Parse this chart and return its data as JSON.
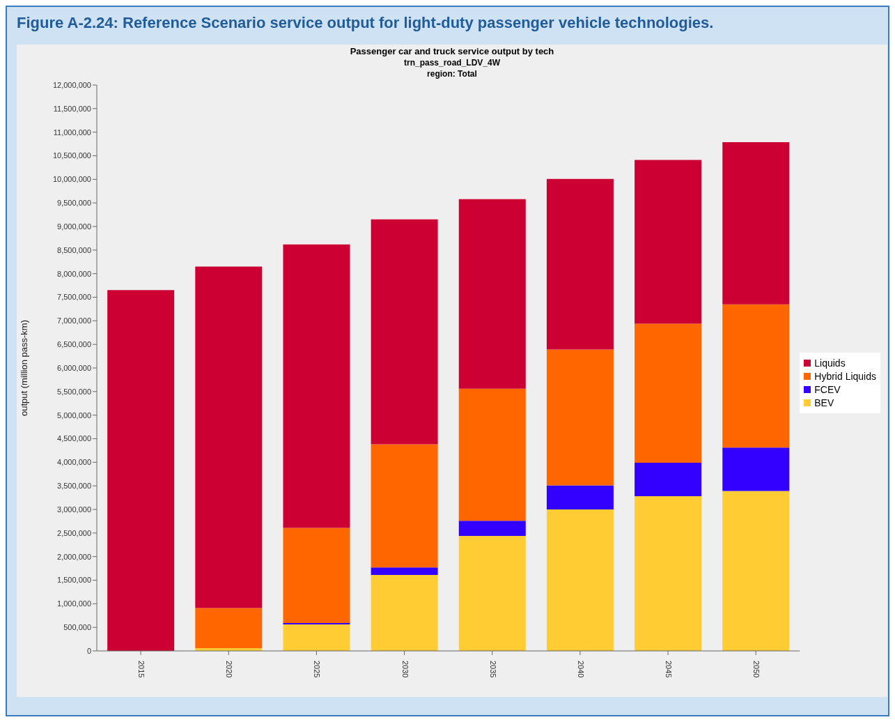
{
  "chart_data": {
    "type": "bar",
    "title": "Figure A-2.24: Reference Scenario service output for light-duty passenger vehicle technologies.",
    "subtitle": "Passenger car and truck service output by tech\ntrn_pass_road_LDV_4W\nregion: Total",
    "ylabel": "output (million pass-km)",
    "categories": [
      "2015",
      "2020",
      "2025",
      "2030",
      "2035",
      "2040",
      "2045",
      "2050"
    ],
    "series": [
      {
        "name": "BEV",
        "color": "#ffcc33",
        "values": [
          0,
          60000,
          560000,
          1610000,
          2440000,
          3000000,
          3280000,
          3390000
        ]
      },
      {
        "name": "FCEV",
        "color": "#3300ff",
        "values": [
          0,
          0,
          30000,
          160000,
          320000,
          510000,
          710000,
          920000
        ]
      },
      {
        "name": "Hybrid Liquids",
        "color": "#ff6600",
        "values": [
          0,
          850000,
          2020000,
          2610000,
          2800000,
          2880000,
          2950000,
          3040000
        ]
      },
      {
        "name": "Liquids",
        "color": "#cc0033",
        "values": [
          7650000,
          7240000,
          6010000,
          4770000,
          4020000,
          3620000,
          3470000,
          3440000
        ]
      }
    ],
    "stacked": true,
    "ylim": [
      0,
      12000000
    ],
    "yticks": [
      0,
      {
        "value": 500000,
        "label": "500,000"
      },
      {
        "value": 1000000,
        "label": "1,000,000"
      },
      {
        "value": 1500000,
        "label": "1,500,000"
      },
      {
        "value": 2000000,
        "label": "2,000,000"
      },
      {
        "value": 2500000,
        "label": "2,500,000"
      },
      {
        "value": 3000000,
        "label": "3,000,000"
      },
      {
        "value": 3500000,
        "label": "3,500,000"
      },
      {
        "value": 4000000,
        "label": "4,000,000"
      },
      {
        "value": 4500000,
        "label": "4,500,000"
      },
      {
        "value": 5000000,
        "label": "5,000,000"
      },
      {
        "value": 5500000,
        "label": "5,500,000"
      },
      {
        "value": 6000000,
        "label": "6,000,000"
      },
      {
        "value": 6500000,
        "label": "6,500,000"
      },
      {
        "value": 7000000,
        "label": "7,000,000"
      },
      {
        "value": 7500000,
        "label": "7,500,000"
      },
      {
        "value": 8000000,
        "label": "8,000,000"
      },
      {
        "value": 8500000,
        "label": "8,500,000"
      },
      {
        "value": 9000000,
        "label": "9,000,000"
      },
      {
        "value": 9500000,
        "label": "9,500,000"
      },
      {
        "value": 10000000,
        "label": "10,000,000"
      },
      {
        "value": 10500000,
        "label": "10,500,000"
      },
      {
        "value": 11000000,
        "label": "11,000,000"
      },
      {
        "value": 11500000,
        "label": "11,500,000"
      },
      {
        "value": 12000000,
        "label": "12,000,000"
      }
    ],
    "legend": "right"
  }
}
